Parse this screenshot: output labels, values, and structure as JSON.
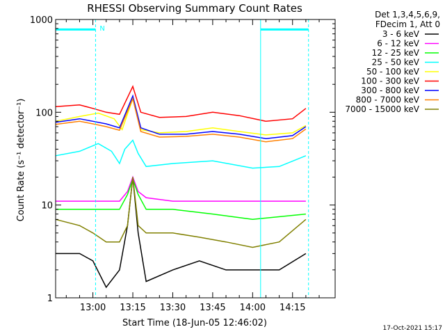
{
  "chart_data": {
    "type": "line",
    "title": "RHESSI Observing Summary Count Rates",
    "xlabel": "Start Time (18-Jun-05 12:46:02)",
    "ylabel": "Count Rate (s⁻¹ detector⁻¹)",
    "y_scale": "log",
    "ylim": [
      1,
      1000
    ],
    "xlim": [
      "12:46",
      "14:31"
    ],
    "x_ticks": [
      "13:00",
      "13:15",
      "13:30",
      "13:45",
      "14:00",
      "14:15"
    ],
    "y_ticks": [
      "1",
      "10",
      "100",
      "1000"
    ],
    "legend_header": [
      "Det 1,3,4,5,6,9,",
      "FDecim 1, Att 0"
    ],
    "legend_position": "right",
    "footer": "17-Oct-2021 15:17",
    "annotations": [
      {
        "text": "N",
        "x": "13:01",
        "color": "#00ffff"
      }
    ],
    "flags": [
      {
        "name": "night",
        "start": "12:46",
        "end": "13:01",
        "color": "#00ffff",
        "level": 780
      },
      {
        "name": "night",
        "start": "14:03",
        "end": "14:21",
        "color": "#00ffff",
        "level": 780
      }
    ],
    "vlines": [
      {
        "x": "13:01",
        "color": "#00ffff",
        "style": "dashed"
      },
      {
        "x": "14:03",
        "color": "#00ffff",
        "style": "solid"
      },
      {
        "x": "14:21",
        "color": "#00ffff",
        "style": "dashed"
      }
    ],
    "series": [
      {
        "name": "3 - 6 keV",
        "color": "#000000",
        "points": [
          [
            "12:46",
            3
          ],
          [
            "12:55",
            3
          ],
          [
            "13:00",
            2.5
          ],
          [
            "13:05",
            1.3
          ],
          [
            "13:10",
            2
          ],
          [
            "13:13",
            6
          ],
          [
            "13:15",
            20
          ],
          [
            "13:17",
            5
          ],
          [
            "13:20",
            1.5
          ],
          [
            "13:30",
            2
          ],
          [
            "13:40",
            2.5
          ],
          [
            "13:50",
            2
          ],
          [
            "14:00",
            2
          ],
          [
            "14:10",
            2
          ],
          [
            "14:20",
            3
          ]
        ]
      },
      {
        "name": "6 - 12 keV",
        "color": "#ff00ff",
        "points": [
          [
            "12:46",
            11
          ],
          [
            "13:00",
            11
          ],
          [
            "13:10",
            11
          ],
          [
            "13:13",
            14
          ],
          [
            "13:15",
            20
          ],
          [
            "13:17",
            14
          ],
          [
            "13:20",
            12
          ],
          [
            "13:30",
            11
          ],
          [
            "13:45",
            11
          ],
          [
            "14:00",
            11
          ],
          [
            "14:20",
            11
          ]
        ]
      },
      {
        "name": "12 - 25 keV",
        "color": "#00ff00",
        "points": [
          [
            "12:46",
            9
          ],
          [
            "13:00",
            9
          ],
          [
            "13:10",
            9
          ],
          [
            "13:13",
            13
          ],
          [
            "13:15",
            19
          ],
          [
            "13:17",
            13
          ],
          [
            "13:20",
            9
          ],
          [
            "13:30",
            9
          ],
          [
            "13:45",
            8
          ],
          [
            "14:00",
            7
          ],
          [
            "14:20",
            8
          ]
        ]
      },
      {
        "name": "25 - 50 keV",
        "color": "#00ffff",
        "points": [
          [
            "12:46",
            34
          ],
          [
            "12:55",
            38
          ],
          [
            "13:02",
            46
          ],
          [
            "13:07",
            38
          ],
          [
            "13:10",
            28
          ],
          [
            "13:12",
            40
          ],
          [
            "13:15",
            50
          ],
          [
            "13:17",
            36
          ],
          [
            "13:20",
            26
          ],
          [
            "13:30",
            28
          ],
          [
            "13:45",
            30
          ],
          [
            "14:00",
            25
          ],
          [
            "14:10",
            26
          ],
          [
            "14:20",
            34
          ]
        ]
      },
      {
        "name": "50 - 100 keV",
        "color": "#ffff00",
        "points": [
          [
            "12:46",
            80
          ],
          [
            "12:55",
            90
          ],
          [
            "13:02",
            98
          ],
          [
            "13:08",
            85
          ],
          [
            "13:11",
            65
          ],
          [
            "13:15",
            140
          ],
          [
            "13:18",
            65
          ],
          [
            "13:25",
            60
          ],
          [
            "13:35",
            62
          ],
          [
            "13:45",
            68
          ],
          [
            "13:55",
            62
          ],
          [
            "14:05",
            57
          ],
          [
            "14:15",
            60
          ],
          [
            "14:20",
            72
          ]
        ]
      },
      {
        "name": "100 - 300 keV",
        "color": "#ff0000",
        "points": [
          [
            "12:46",
            115
          ],
          [
            "12:55",
            120
          ],
          [
            "13:00",
            110
          ],
          [
            "13:05",
            100
          ],
          [
            "13:10",
            95
          ],
          [
            "13:15",
            190
          ],
          [
            "13:18",
            100
          ],
          [
            "13:25",
            88
          ],
          [
            "13:35",
            90
          ],
          [
            "13:45",
            100
          ],
          [
            "13:55",
            92
          ],
          [
            "14:05",
            80
          ],
          [
            "14:15",
            85
          ],
          [
            "14:20",
            110
          ]
        ]
      },
      {
        "name": "300 - 800 keV",
        "color": "#0000ff",
        "points": [
          [
            "12:46",
            78
          ],
          [
            "12:55",
            85
          ],
          [
            "13:00",
            80
          ],
          [
            "13:05",
            75
          ],
          [
            "13:10",
            68
          ],
          [
            "13:15",
            150
          ],
          [
            "13:18",
            68
          ],
          [
            "13:25",
            58
          ],
          [
            "13:35",
            58
          ],
          [
            "13:45",
            62
          ],
          [
            "13:55",
            58
          ],
          [
            "14:05",
            52
          ],
          [
            "14:15",
            56
          ],
          [
            "14:20",
            70
          ]
        ]
      },
      {
        "name": "800 - 7000 keV",
        "color": "#ff8000",
        "points": [
          [
            "12:46",
            74
          ],
          [
            "12:55",
            80
          ],
          [
            "13:00",
            75
          ],
          [
            "13:05",
            70
          ],
          [
            "13:10",
            64
          ],
          [
            "13:15",
            140
          ],
          [
            "13:18",
            62
          ],
          [
            "13:25",
            54
          ],
          [
            "13:35",
            55
          ],
          [
            "13:45",
            58
          ],
          [
            "13:55",
            54
          ],
          [
            "14:05",
            48
          ],
          [
            "14:15",
            52
          ],
          [
            "14:20",
            66
          ]
        ]
      },
      {
        "name": "7000 - 15000 keV",
        "color": "#808000",
        "points": [
          [
            "12:46",
            7
          ],
          [
            "12:55",
            6
          ],
          [
            "13:00",
            5
          ],
          [
            "13:05",
            4
          ],
          [
            "13:10",
            4
          ],
          [
            "13:13",
            6
          ],
          [
            "13:15",
            20
          ],
          [
            "13:17",
            6
          ],
          [
            "13:20",
            5
          ],
          [
            "13:30",
            5
          ],
          [
            "13:40",
            4.5
          ],
          [
            "13:50",
            4
          ],
          [
            "14:00",
            3.5
          ],
          [
            "14:10",
            4
          ],
          [
            "14:20",
            7
          ]
        ]
      }
    ]
  }
}
